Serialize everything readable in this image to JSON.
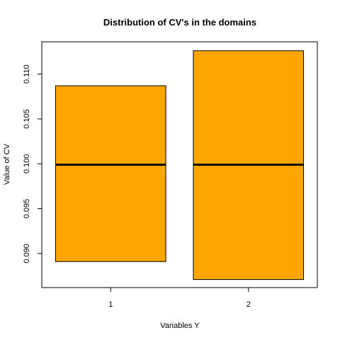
{
  "chart_data": {
    "type": "boxplot",
    "title": "Distribution of CV's in the domains",
    "xlabel": "Variables Y",
    "ylabel": "Value of CV",
    "categories": [
      "1",
      "2"
    ],
    "boxes": [
      {
        "category": "1",
        "lower": 0.0891,
        "median": 0.0999,
        "upper": 0.1087
      },
      {
        "category": "2",
        "lower": 0.0871,
        "median": 0.0999,
        "upper": 0.1126
      }
    ],
    "ylim": [
      0.0862,
      0.1136
    ],
    "yticks": [
      "0.090",
      "0.095",
      "0.100",
      "0.105",
      "0.110"
    ],
    "ytick_values": [
      0.09,
      0.095,
      0.1,
      0.105,
      0.11
    ],
    "box_color": "#FFA500",
    "grid": false
  }
}
